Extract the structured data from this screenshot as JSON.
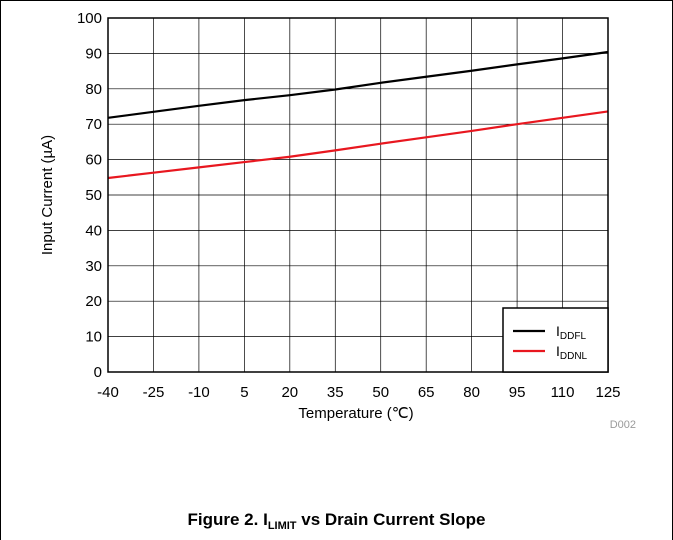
{
  "chart_data": {
    "type": "line",
    "xlabel": "Temperature (℃)",
    "ylabel": "Input Current (µA)",
    "xlim": [
      -40,
      125
    ],
    "ylim": [
      0,
      100
    ],
    "x_ticks": [
      -40,
      -25,
      -10,
      5,
      20,
      35,
      50,
      65,
      80,
      95,
      110,
      125
    ],
    "y_ticks": [
      0,
      10,
      20,
      30,
      40,
      50,
      60,
      70,
      80,
      90,
      100
    ],
    "grid": true,
    "legend_position": "bottom-right",
    "series": [
      {
        "name": "IDDFL",
        "name_main": "I",
        "name_sub": "DDFL",
        "color": "#000000",
        "x": [
          -40,
          -25,
          -10,
          5,
          20,
          35,
          50,
          65,
          80,
          95,
          110,
          125
        ],
        "y": [
          71.8,
          73.5,
          75.2,
          76.8,
          78.2,
          79.8,
          81.7,
          83.4,
          85.1,
          86.9,
          88.6,
          90.4
        ]
      },
      {
        "name": "IDDNL",
        "name_main": "I",
        "name_sub": "DDNL",
        "color": "#e8171f",
        "x": [
          -40,
          -25,
          -10,
          5,
          20,
          35,
          50,
          65,
          80,
          95,
          110,
          125
        ],
        "y": [
          54.8,
          56.3,
          57.8,
          59.3,
          60.8,
          62.6,
          64.5,
          66.3,
          68.1,
          70.0,
          71.8,
          73.6
        ]
      }
    ],
    "figure_code": "D002"
  },
  "caption": {
    "prefix": "Figure 2. I",
    "sub": "LIMIT",
    "suffix": " vs Drain Current Slope"
  }
}
